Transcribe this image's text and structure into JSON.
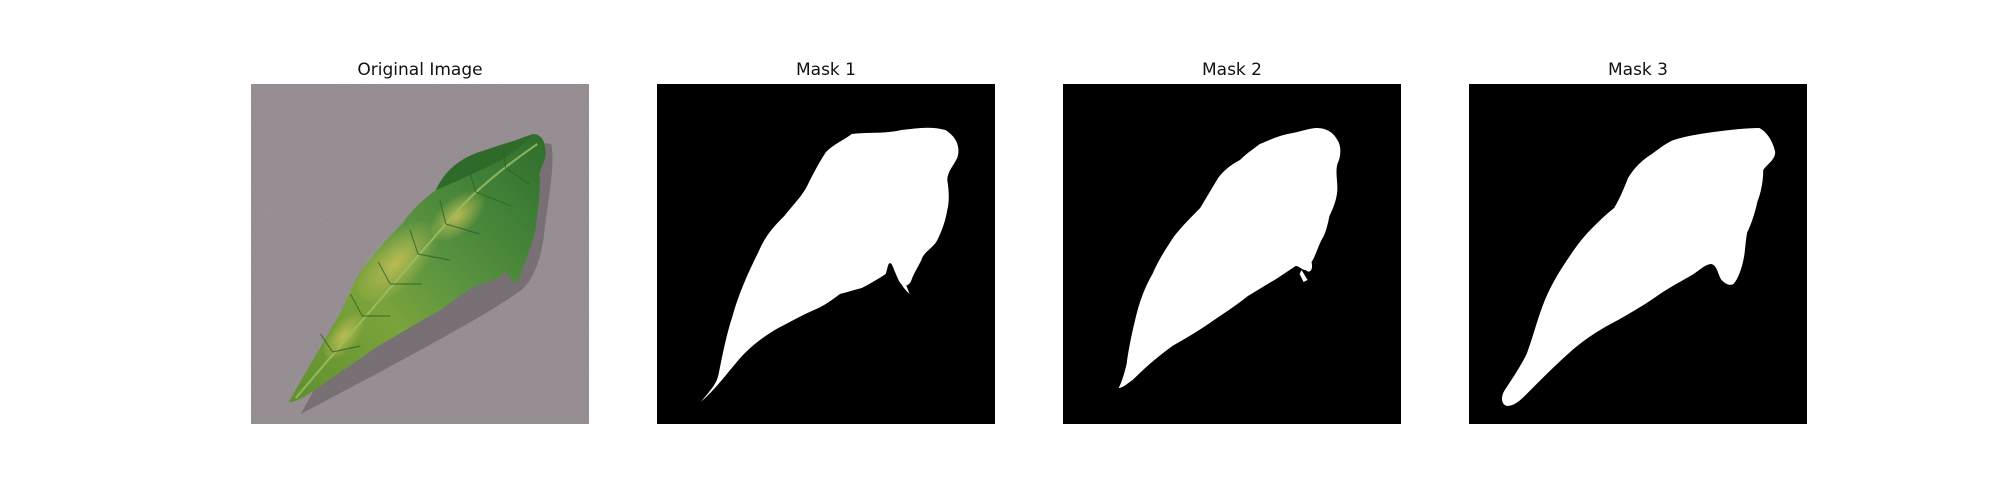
{
  "panels": [
    {
      "title": "Original Image",
      "kind": "photo",
      "depicts": "leaf"
    },
    {
      "title": "Mask 1",
      "kind": "mask"
    },
    {
      "title": "Mask 2",
      "kind": "mask"
    },
    {
      "title": "Mask 3",
      "kind": "mask"
    }
  ],
  "colors": {
    "background_surface": "#9c9498",
    "leaf_green": "#4f8a33",
    "leaf_yellow": "#b9b64a",
    "mask_background": "#000000",
    "mask_foreground": "#ffffff"
  }
}
